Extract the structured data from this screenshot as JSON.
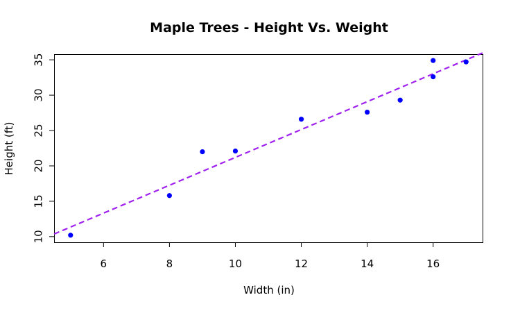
{
  "chart_data": {
    "type": "scatter",
    "title": "Maple Trees - Height Vs. Weight",
    "xlabel": "Width (in)",
    "ylabel": "Height (ft)",
    "xlim": [
      4.5,
      17.5
    ],
    "ylim": [
      9.2,
      35.8
    ],
    "xticks": [
      6,
      8,
      10,
      12,
      14,
      16
    ],
    "yticks": [
      10,
      15,
      20,
      25,
      30,
      35
    ],
    "points": [
      {
        "x": 5,
        "y": 10.2
      },
      {
        "x": 8,
        "y": 15.8
      },
      {
        "x": 9,
        "y": 22.0
      },
      {
        "x": 10,
        "y": 22.1
      },
      {
        "x": 12,
        "y": 26.6
      },
      {
        "x": 14,
        "y": 27.6
      },
      {
        "x": 15,
        "y": 29.3
      },
      {
        "x": 16,
        "y": 32.6
      },
      {
        "x": 16,
        "y": 34.9
      },
      {
        "x": 17,
        "y": 34.7
      }
    ],
    "trendline": {
      "type": "linear",
      "slope": 1.97,
      "intercept": 1.5,
      "style": "dashed"
    },
    "point_color": "#0000ff",
    "line_color": "#a020f0",
    "grid": false,
    "legend": "none"
  }
}
